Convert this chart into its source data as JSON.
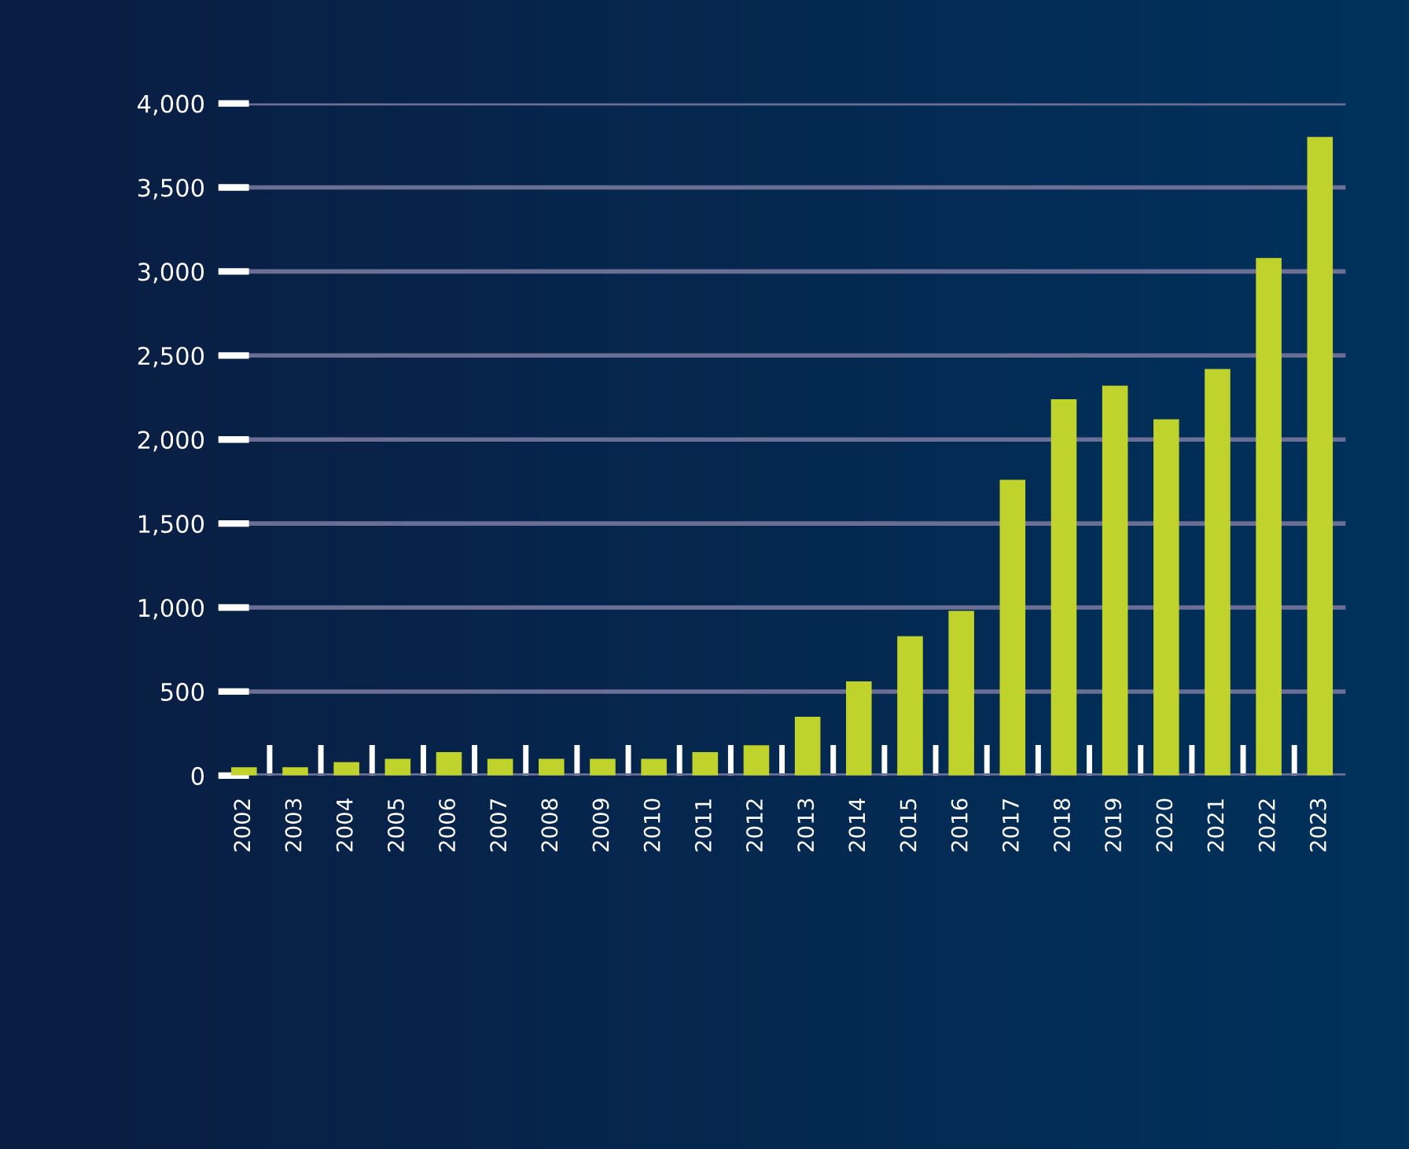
{
  "chart_data": {
    "type": "bar",
    "categories": [
      "2002",
      "2003",
      "2004",
      "2005",
      "2006",
      "2007",
      "2008",
      "2009",
      "2010",
      "2011",
      "2012",
      "2013",
      "2014",
      "2015",
      "2016",
      "2017",
      "2018",
      "2019",
      "2020",
      "2021",
      "2022",
      "2023"
    ],
    "values": [
      50,
      50,
      80,
      100,
      140,
      100,
      100,
      100,
      100,
      140,
      180,
      350,
      560,
      830,
      980,
      1760,
      2240,
      2320,
      2120,
      2420,
      3080,
      3800
    ],
    "color": "#c0d22c",
    "ylim": [
      0,
      4000
    ],
    "yticks": [
      {
        "value": 0,
        "label": "0"
      },
      {
        "value": 500,
        "label": "500"
      },
      {
        "value": 1000,
        "label": "1,000"
      },
      {
        "value": 1500,
        "label": "1,500"
      },
      {
        "value": 2000,
        "label": "2,000"
      },
      {
        "value": 2500,
        "label": "2,500"
      },
      {
        "value": 3000,
        "label": "3,000"
      },
      {
        "value": 3500,
        "label": "3,500"
      },
      {
        "value": 4000,
        "label": "4,000"
      }
    ],
    "grid": "y",
    "legend": false
  }
}
